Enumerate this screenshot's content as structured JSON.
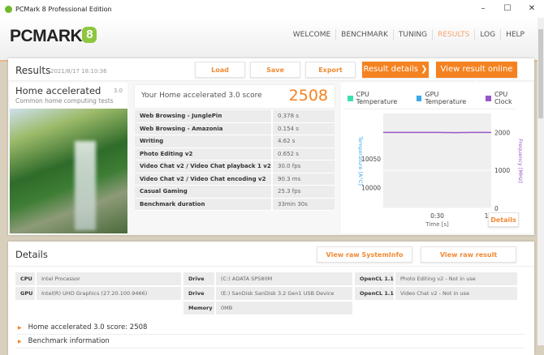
{
  "window": {
    "title": "PCMark 8 Professional Edition",
    "min": "–",
    "max": "☐",
    "close": "✕"
  },
  "brand": {
    "name": "PCMARK",
    "version": "8"
  },
  "nav": [
    {
      "label": "WELCOME"
    },
    {
      "label": "BENCHMARK"
    },
    {
      "label": "TUNING"
    },
    {
      "label": "RESULTS",
      "active": true
    },
    {
      "label": "LOG"
    },
    {
      "label": "HELP"
    }
  ],
  "results": {
    "title": "Results",
    "date": "2021/8/17 18:10:36",
    "buttons": {
      "load": "Load",
      "save": "Save",
      "export": "Export",
      "details": "Result details ❯",
      "online": "View result online ❯"
    },
    "test": {
      "name": "Home accelerated",
      "version": "3.0",
      "subtitle": "Common home computing tests"
    },
    "score": {
      "label": "Your Home accelerated 3.0 score",
      "value": "2508"
    },
    "rows": [
      {
        "k": "Web Browsing - JunglePin",
        "v": "0.378 s"
      },
      {
        "k": "Web Browsing - Amazonia",
        "v": "0.154 s"
      },
      {
        "k": "Writing",
        "v": "4.62 s"
      },
      {
        "k": "Photo Editing v2",
        "v": "0.652 s"
      },
      {
        "k": "Video Chat v2 / Video Chat playback 1 v2",
        "v": "30.0 fps"
      },
      {
        "k": "Video Chat v2 / Video Chat encoding v2",
        "v": "90.3 ms"
      },
      {
        "k": "Casual Gaming",
        "v": "25.3 fps"
      },
      {
        "k": "Benchmark duration",
        "v": "33min 30s"
      }
    ]
  },
  "chart_data": {
    "type": "line",
    "legend": [
      "CPU Temperature",
      "GPU Temperature",
      "CPU Clock"
    ],
    "colors": {
      "cpu_temp": "#3ee0b0",
      "gpu_temp": "#3aa8e8",
      "cpu_clock": "#9a55c8"
    },
    "xlabel": "Time [s]",
    "ylabel_left": "Temperature [A°C]",
    "ylabel_right": "Frequency [MHz]",
    "x_ticks": [
      "0:30",
      "1:00"
    ],
    "y_left_ticks": [
      "10000",
      "10050"
    ],
    "y_right_ticks": [
      "0",
      "1000",
      "2000"
    ],
    "y_right_range": [
      0,
      2500
    ],
    "series": [
      {
        "name": "CPU Clock",
        "x": [
          0,
          10,
          20,
          30,
          40,
          50,
          60
        ],
        "values": [
          2000,
          2000,
          2000,
          2000,
          1995,
          2000,
          2000
        ]
      }
    ],
    "details_button": "Details"
  },
  "details": {
    "title": "Details",
    "buttons": {
      "sysinfo": "View raw SystemInfo",
      "raw": "View raw result"
    },
    "cpu": {
      "k": "CPU",
      "v": "Intel Processor"
    },
    "gpu": {
      "k": "GPU",
      "v": "Intel(R) UHD Graphics (27.20.100.9466)"
    },
    "drive1": {
      "k": "Drive",
      "v": "(C:) ADATA SP580M"
    },
    "drive2": {
      "k": "Drive",
      "v": "(E:) SanDisk SanDisk 3.2 Gen1 USB Device"
    },
    "memory": {
      "k": "Memory",
      "v": "0MB"
    },
    "ocl1": {
      "k": "OpenCL 1.1",
      "v": "Photo Editing v2 - Not in use"
    },
    "ocl2": {
      "k": "OpenCL 1.1",
      "v": "Video Chat v2 - Not in use"
    },
    "sections": [
      "Home accelerated 3.0 score: 2508",
      "Benchmark information"
    ]
  }
}
